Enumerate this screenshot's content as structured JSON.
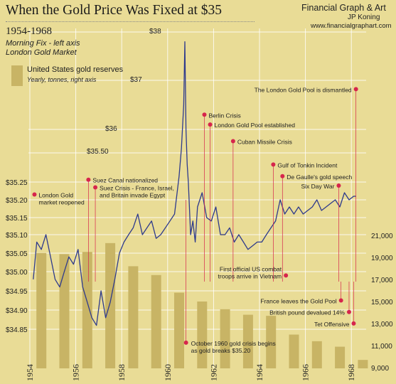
{
  "header": {
    "title": "When the Gold Price Was Fixed at $35",
    "subtitle": "1954-1968",
    "note_left_axis": "Morning Fix - left axis",
    "note_market": "London Gold Market",
    "brand": "Financial Graph & Art",
    "author": "JP Koning",
    "url": "www.financialgraphart.com"
  },
  "legend": {
    "name": "United States gold reserves",
    "unit": "Yearly, tonnes, right axis"
  },
  "colors": {
    "background": "#e9dc96",
    "bars": "#c8b465",
    "line": "#2e3a8c",
    "marker": "#d6254c",
    "gridline": "#ffffff"
  },
  "chart_data": {
    "type": "line",
    "x_ticks": [
      "1954",
      "1956",
      "1958",
      "1960",
      "1962",
      "1964",
      "1966",
      "1968"
    ],
    "xlim": [
      1954,
      1968.75
    ],
    "left_axis": {
      "ticks": [
        "$34.85",
        "$34.90",
        "$34.95",
        "$35.00",
        "$35.05",
        "$35.10",
        "$35.15",
        "$35.20",
        "$35.25",
        "$35.50",
        "$36",
        "$37",
        "$38"
      ],
      "tick_values": [
        34.85,
        34.9,
        34.95,
        35.0,
        35.05,
        35.1,
        35.15,
        35.2,
        35.25,
        35.5,
        36,
        37,
        38
      ],
      "scale": "piecewise-nonlinear (compressed above $35.25)"
    },
    "right_axis": {
      "ticks": [
        "21,000",
        "19,000",
        "17,000",
        "15,000",
        "13,000",
        "11,000",
        "9,000"
      ],
      "tick_values": [
        21000,
        19000,
        17000,
        15000,
        13000,
        11000,
        9000
      ],
      "ylim": [
        9000,
        22000
      ]
    },
    "series": [
      {
        "name": "United States gold reserves",
        "kind": "bar",
        "x": [
          1954.3,
          1955.3,
          1956.3,
          1957.3,
          1958.3,
          1959.3,
          1960.3,
          1961.3,
          1962.3,
          1963.3,
          1964.3,
          1965.3,
          1966.3,
          1967.3,
          1968.3
        ],
        "values": [
          19400,
          19300,
          19500,
          20300,
          18200,
          17400,
          15800,
          15000,
          14300,
          13800,
          13700,
          12000,
          11400,
          10900,
          9700
        ]
      },
      {
        "kind": "line",
        "x": [
          1954.15,
          1954.3,
          1954.5,
          1954.7,
          1954.9,
          1955.1,
          1955.3,
          1955.5,
          1955.7,
          1955.9,
          1956.1,
          1956.3,
          1956.5,
          1956.7,
          1956.9,
          1957.1,
          1957.3,
          1957.5,
          1957.7,
          1957.9,
          1958.1,
          1958.3,
          1958.5,
          1958.7,
          1958.9,
          1959.1,
          1959.3,
          1959.5,
          1959.7,
          1959.9,
          1960.1,
          1960.3,
          1960.5,
          1960.6,
          1960.7,
          1960.75,
          1960.8,
          1960.85,
          1960.9,
          1961.0,
          1961.1,
          1961.2,
          1961.3,
          1961.5,
          1961.7,
          1961.9,
          1962.1,
          1962.3,
          1962.5,
          1962.7,
          1962.9,
          1963.1,
          1963.3,
          1963.5,
          1963.7,
          1963.9,
          1964.1,
          1964.3,
          1964.5,
          1964.7,
          1964.9,
          1965.1,
          1965.3,
          1965.5,
          1965.7,
          1965.9,
          1966.1,
          1966.3,
          1966.5,
          1966.7,
          1966.9,
          1967.1,
          1967.3,
          1967.5,
          1967.7,
          1967.9,
          1968.1,
          1968.2
        ],
        "values": [
          34.98,
          35.08,
          35.06,
          35.1,
          35.04,
          34.98,
          34.96,
          35.0,
          35.04,
          35.02,
          35.06,
          34.96,
          34.92,
          34.88,
          34.86,
          34.95,
          34.88,
          34.92,
          34.98,
          35.05,
          35.08,
          35.1,
          35.12,
          35.16,
          35.1,
          35.12,
          35.14,
          35.09,
          35.1,
          35.12,
          35.14,
          35.16,
          35.3,
          35.6,
          36.5,
          37.8,
          36.0,
          35.4,
          35.25,
          35.1,
          35.14,
          35.08,
          35.18,
          35.22,
          35.15,
          35.14,
          35.18,
          35.1,
          35.1,
          35.12,
          35.08,
          35.1,
          35.08,
          35.06,
          35.07,
          35.08,
          35.08,
          35.1,
          35.12,
          35.14,
          35.2,
          35.16,
          35.18,
          35.16,
          35.18,
          35.16,
          35.17,
          35.18,
          35.2,
          35.17,
          35.18,
          35.19,
          35.2,
          35.18,
          35.22,
          35.2,
          35.21,
          35.21
        ]
      }
    ],
    "annotations": [
      {
        "label": "London Gold\nmarket reopened",
        "x": 1954.2,
        "y": 35.215
      },
      {
        "label": "Suez Canal nationalized",
        "x": 1956.55,
        "y": 35.27
      },
      {
        "label": "Suez Crisis - France, Israel,\nand Britain invade Egypt",
        "x": 1956.85,
        "y": 35.235
      },
      {
        "label": "October 1960 gold crisis begins\nas gold breaks $35.20",
        "x": 1960.8,
        "y": 34.815
      },
      {
        "label": "Berlin Crisis",
        "x": 1961.6,
        "y": 36.3
      },
      {
        "label": "London Gold Pool established",
        "x": 1961.85,
        "y": 36.1
      },
      {
        "label": "Cuban Missile Crisis",
        "x": 1962.85,
        "y": 35.75
      },
      {
        "label": "Gulf of Tonkin Incident",
        "x": 1964.6,
        "y": 35.4
      },
      {
        "label": "De Gaulle's gold speech",
        "x": 1965.0,
        "y": 35.3
      },
      {
        "label": "First official US combat\ntroops arrive in Vietnam",
        "x": 1965.15,
        "y": 34.99
      },
      {
        "label": "Six Day War",
        "x": 1967.45,
        "y": 35.24
      },
      {
        "label": "France leaves the Gold Pool",
        "x": 1967.55,
        "y": 34.925
      },
      {
        "label": "British pound devalued 14%",
        "x": 1967.9,
        "y": 34.895
      },
      {
        "label": "Tet Offensive",
        "x": 1968.1,
        "y": 34.865
      },
      {
        "label": "The London Gold Pool is dismantled",
        "x": 1968.2,
        "y": 36.82
      }
    ]
  }
}
